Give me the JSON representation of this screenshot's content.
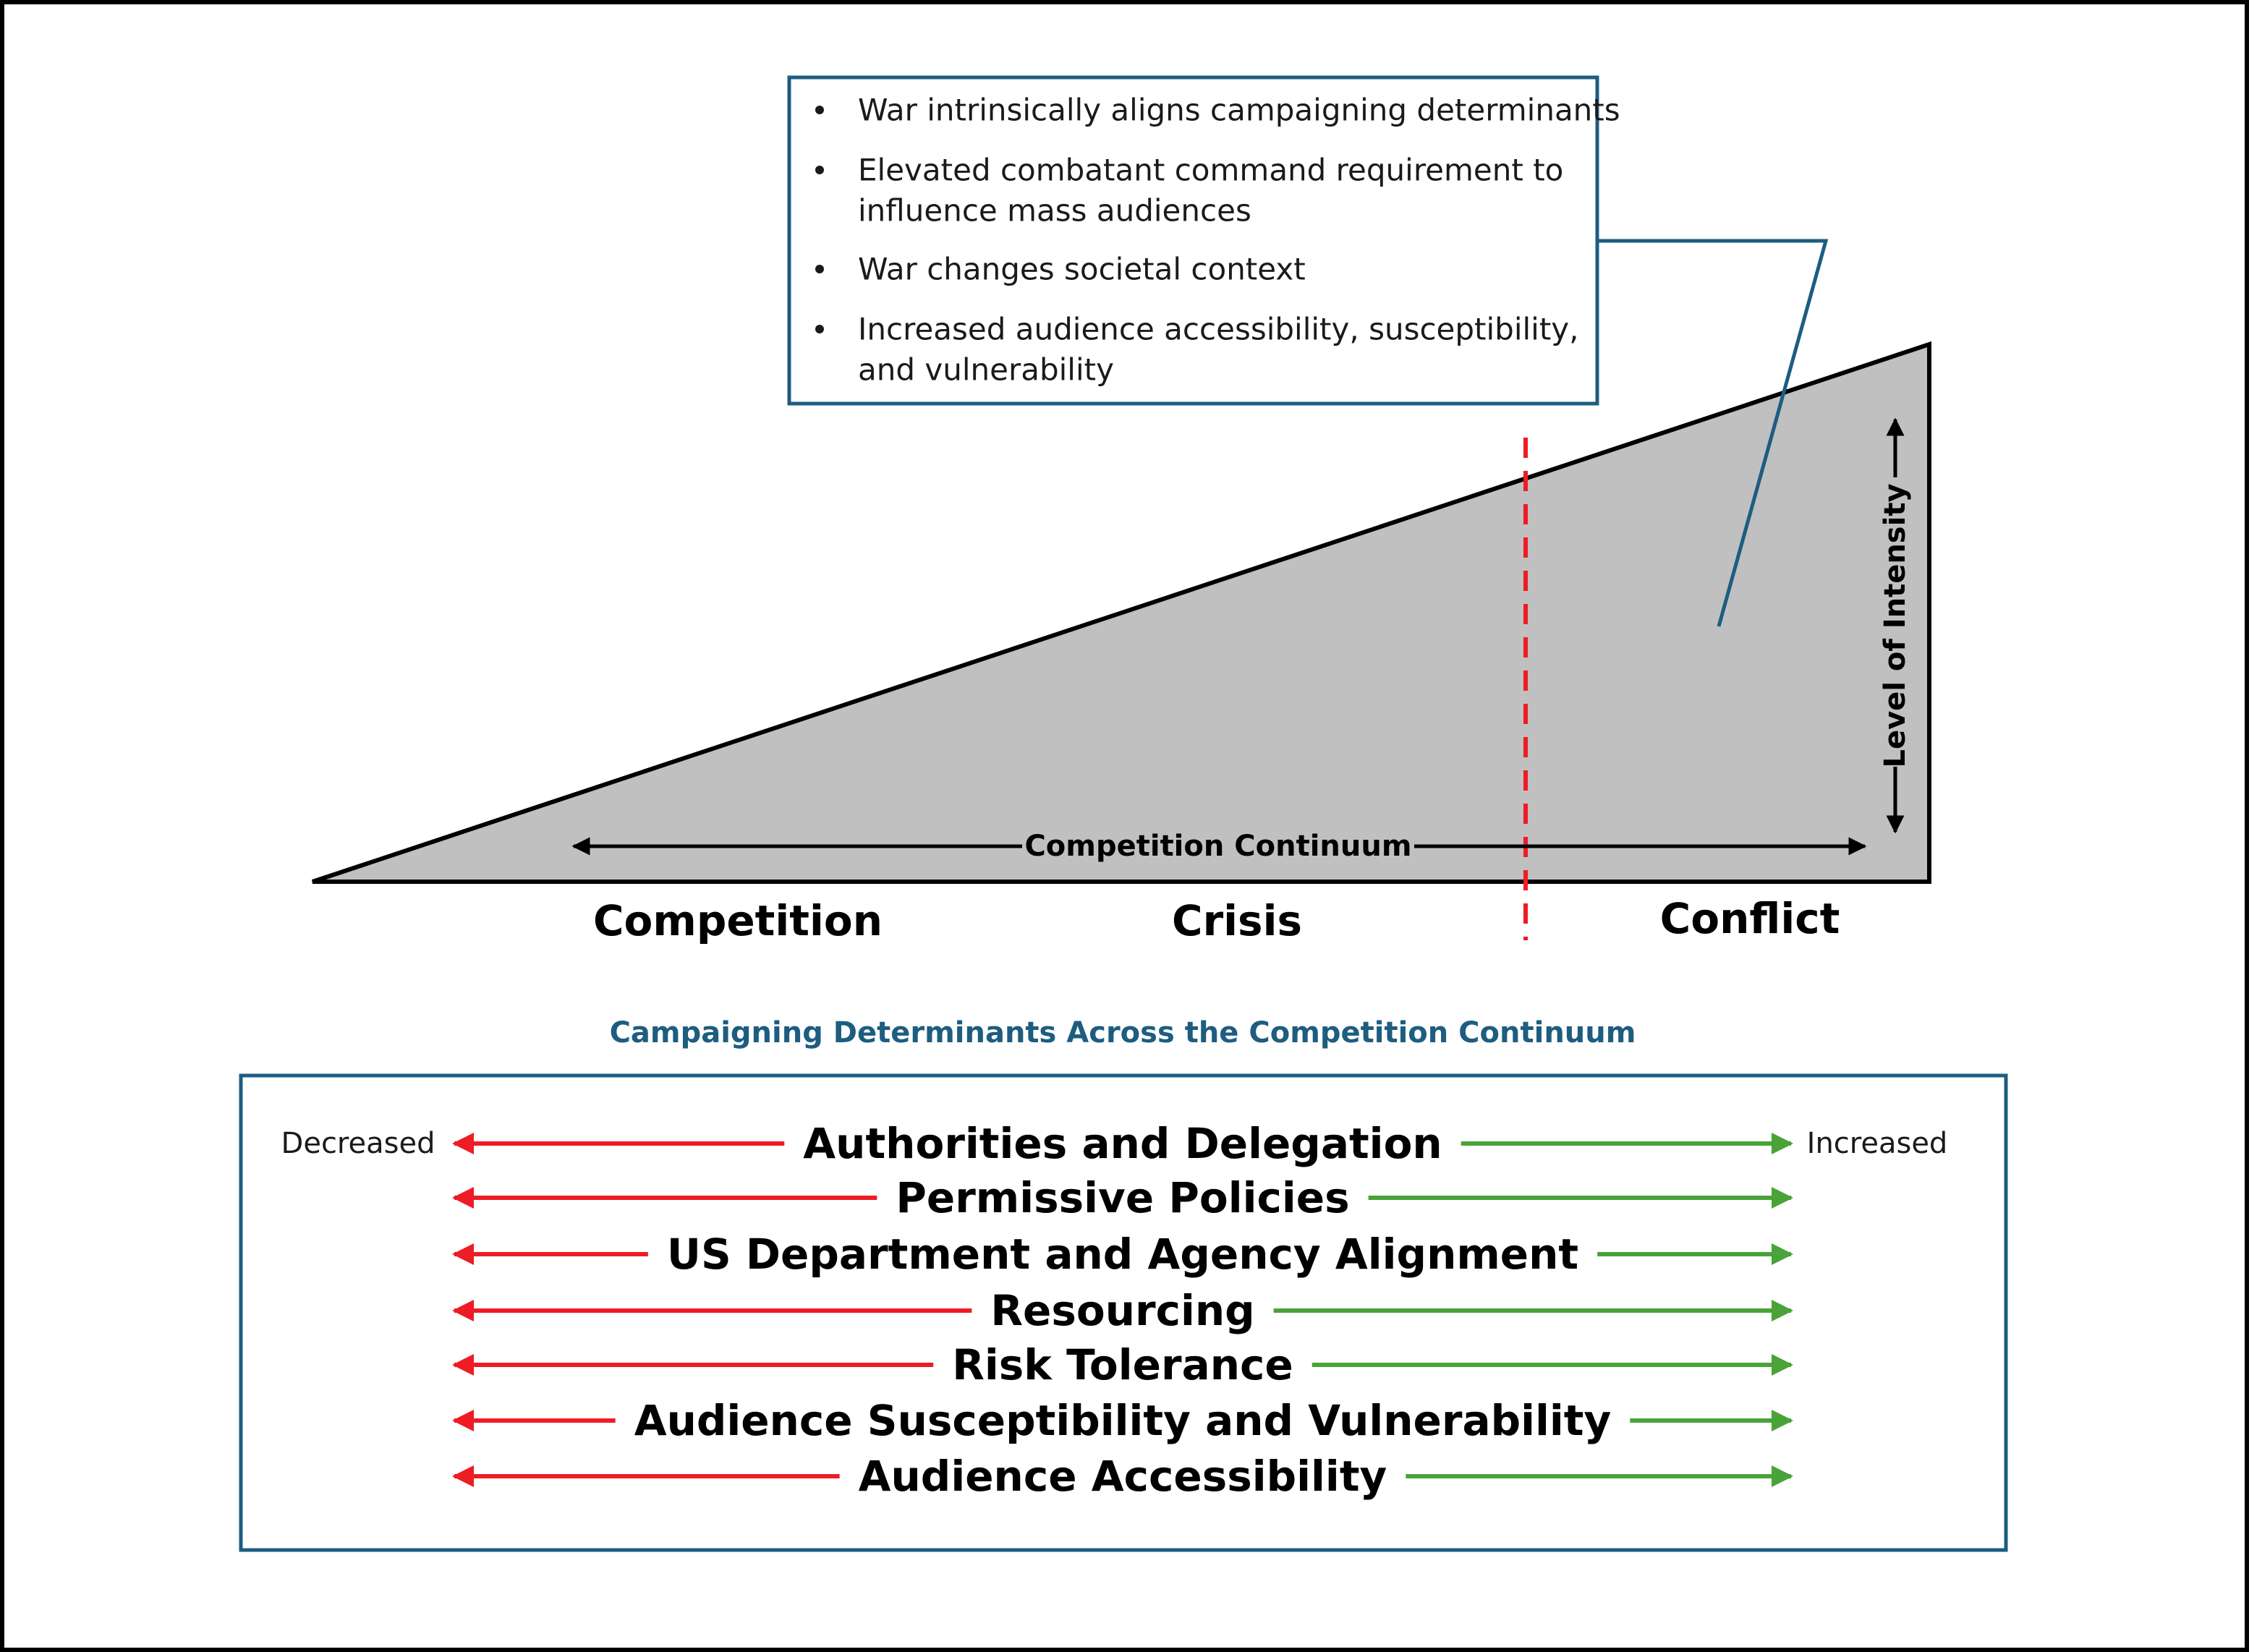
{
  "callout": {
    "bullets": [
      [
        "War intrinsically aligns campaigning determinants"
      ],
      [
        "Elevated combatant command requirement to",
        "influence mass audiences"
      ],
      [
        "War changes societal context"
      ],
      [
        "Increased audience accessibility, susceptibility,",
        "and vulnerability"
      ]
    ]
  },
  "axes": {
    "horizontal": "Competition Continuum",
    "vertical": "Level of Intensity"
  },
  "phases": [
    "Competition",
    "Crisis",
    "Conflict"
  ],
  "panel": {
    "title": "Campaigning Determinants Across the Competition Continuum",
    "left_label": "Decreased",
    "right_label": "Increased",
    "determinants": [
      "Authorities and Delegation",
      "Permissive Policies",
      "US Department and Agency Alignment",
      "Resourcing",
      "Risk Tolerance",
      "Audience Susceptibility and Vulnerability",
      "Audience Accessibility"
    ]
  },
  "colors": {
    "frame": "#000000",
    "triangle_fill": "#c0c0c0",
    "callout_border": "#1d5d80",
    "panel_border": "#1d5d80",
    "panel_title": "#1d5d80",
    "divider": "#ee1c24",
    "decreased_arrow": "#ee1c24",
    "increased_arrow": "#4aa338"
  }
}
